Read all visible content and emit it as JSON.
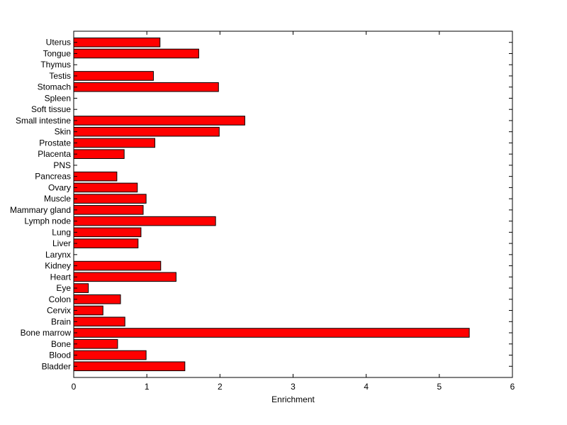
{
  "chart_data": {
    "type": "bar",
    "orientation": "horizontal",
    "title": "",
    "xlabel": "Enrichment",
    "ylabel": "",
    "xlim": [
      0,
      6
    ],
    "xticks": [
      0,
      1,
      2,
      3,
      4,
      5,
      6
    ],
    "grid": false,
    "bar_color": "#ff0000",
    "categories": [
      "Bladder",
      "Blood",
      "Bone",
      "Bone marrow",
      "Brain",
      "Cervix",
      "Colon",
      "Eye",
      "Heart",
      "Kidney",
      "Larynx",
      "Liver",
      "Lung",
      "Lymph node",
      "Mammary gland",
      "Muscle",
      "Ovary",
      "Pancreas",
      "PNS",
      "Placenta",
      "Prostate",
      "Skin",
      "Small intestine",
      "Soft tissue",
      "Spleen",
      "Stomach",
      "Testis",
      "Thymus",
      "Tongue",
      "Uterus"
    ],
    "values": [
      1.52,
      0.99,
      0.6,
      5.41,
      0.7,
      0.4,
      0.64,
      0.2,
      1.4,
      1.19,
      0,
      0.88,
      0.92,
      1.94,
      0.95,
      0.99,
      0.87,
      0.59,
      0,
      0.69,
      1.11,
      1.99,
      2.34,
      0,
      0,
      1.98,
      1.09,
      0,
      1.71,
      1.18
    ]
  }
}
